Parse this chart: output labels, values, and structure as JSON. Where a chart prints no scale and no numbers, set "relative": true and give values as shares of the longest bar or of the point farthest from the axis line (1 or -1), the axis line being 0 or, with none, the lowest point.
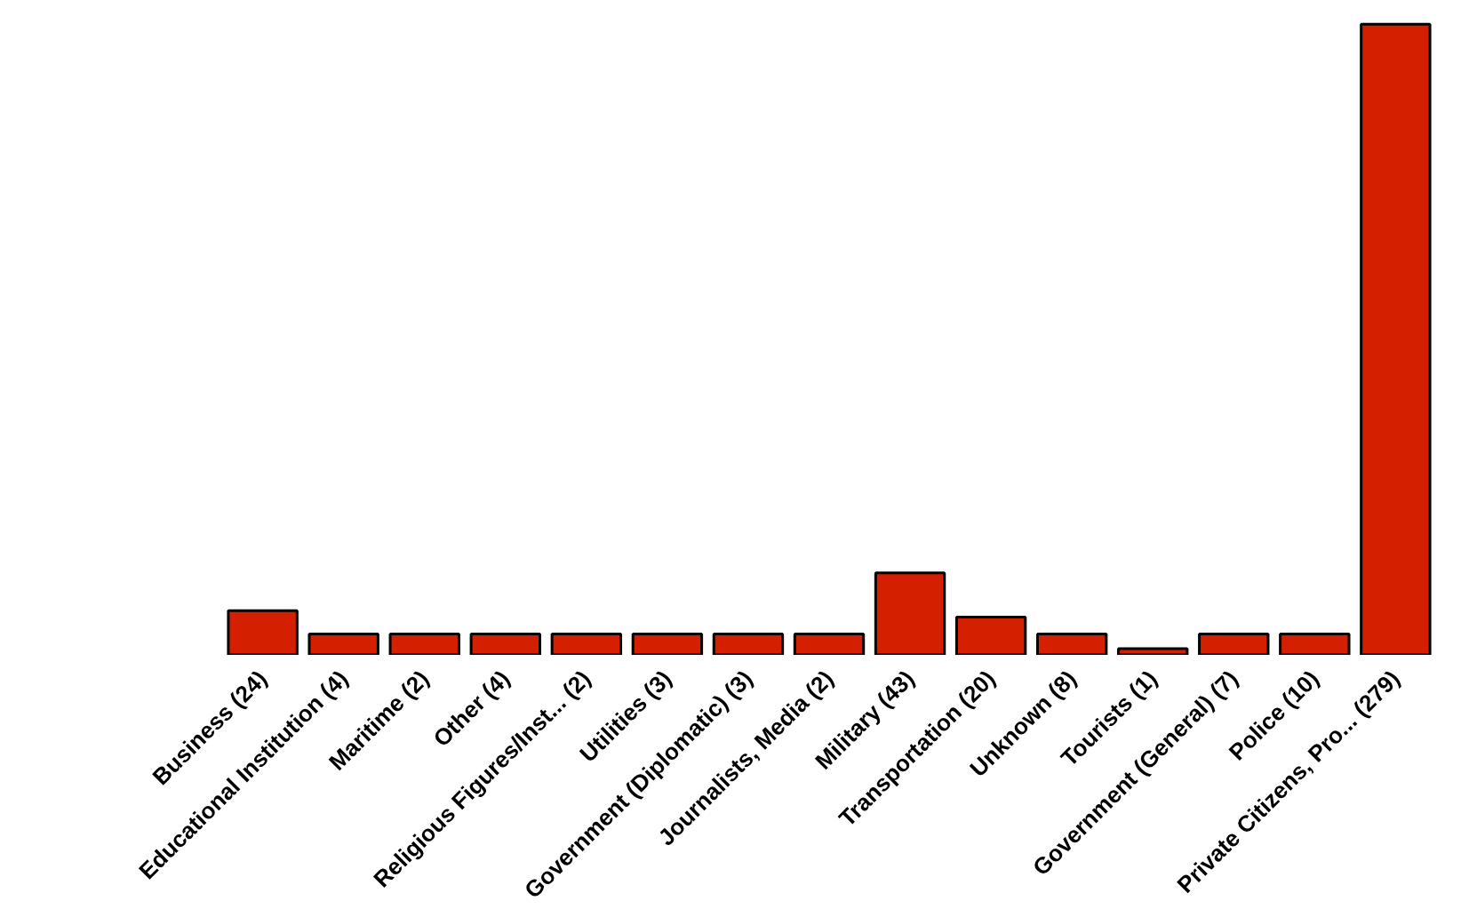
{
  "chart_data": {
    "type": "bar",
    "relative": true,
    "color": "#d42000",
    "grid": false,
    "categories": [
      "Business (24)",
      "Educational Institution (4)",
      "Maritime (2)",
      "Other (4)",
      "Religious Figures/Inst... (2)",
      "Utilities (3)",
      "Government (Diplomatic) (3)",
      "Journalists, Media (2)",
      "Military (43)",
      "Transportation (20)",
      "Unknown (8)",
      "Tourists (1)",
      "Government (General) (7)",
      "Police (10)",
      "Private Citizens, Pro... (279)"
    ],
    "values": [
      0.07,
      0.033,
      0.033,
      0.033,
      0.033,
      0.033,
      0.033,
      0.033,
      0.13,
      0.06,
      0.033,
      0.01,
      0.033,
      0.033,
      1.0
    ]
  }
}
